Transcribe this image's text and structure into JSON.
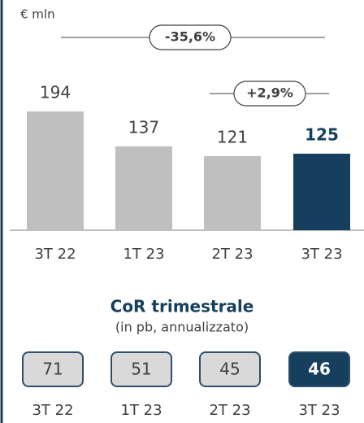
{
  "chart_data": [
    {
      "type": "bar",
      "unit_label": "€ mln",
      "categories": [
        "3T 22",
        "1T 23",
        "2T 23",
        "3T 23"
      ],
      "values": [
        194,
        137,
        121,
        125
      ],
      "colors": [
        "#bfbfbf",
        "#bfbfbf",
        "#bfbfbf",
        "#163f5e"
      ],
      "annotations": [
        {
          "label": "-35,6%"
        },
        {
          "label": "+2,9%"
        }
      ]
    },
    {
      "type": "boxes",
      "title": "CoR trimestrale",
      "subtitle": "(in pb, annualizzato)",
      "categories": [
        "3T 22",
        "1T 23",
        "2T 23",
        "3T 23"
      ],
      "values": [
        71,
        51,
        45,
        46
      ],
      "colors": [
        "#d9d9d9",
        "#d9d9d9",
        "#d9d9d9",
        "#163f5e"
      ]
    }
  ]
}
